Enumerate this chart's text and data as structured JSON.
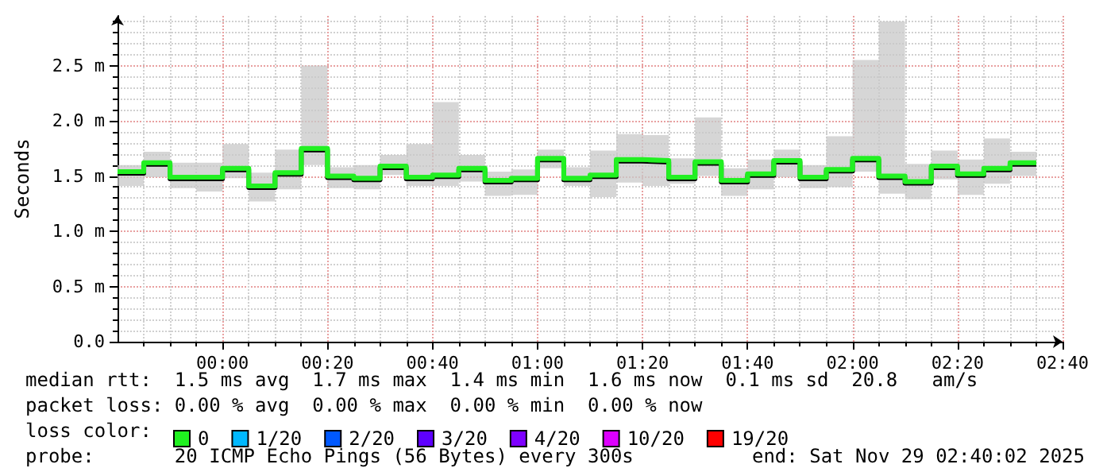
{
  "chart_data": {
    "type": "step",
    "ylabel": "Seconds",
    "x": [
      "2025-11-28T23:40",
      "2025-11-28T23:45",
      "2025-11-28T23:50",
      "2025-11-28T23:55",
      "2025-11-29T00:00",
      "2025-11-29T00:05",
      "2025-11-29T00:10",
      "2025-11-29T00:15",
      "2025-11-29T00:20",
      "2025-11-29T00:25",
      "2025-11-29T00:30",
      "2025-11-29T00:35",
      "2025-11-29T00:40",
      "2025-11-29T00:45",
      "2025-11-29T00:50",
      "2025-11-29T00:55",
      "2025-11-29T01:00",
      "2025-11-29T01:05",
      "2025-11-29T01:10",
      "2025-11-29T01:15",
      "2025-11-29T01:20",
      "2025-11-29T01:25",
      "2025-11-29T01:30",
      "2025-11-29T01:35",
      "2025-11-29T01:40",
      "2025-11-29T01:45",
      "2025-11-29T01:50",
      "2025-11-29T01:55",
      "2025-11-29T02:00",
      "2025-11-29T02:05",
      "2025-11-29T02:10",
      "2025-11-29T02:15",
      "2025-11-29T02:20",
      "2025-11-29T02:25",
      "2025-11-29T02:30",
      "2025-11-29T02:35"
    ],
    "series": [
      {
        "name": "0",
        "color": "#20f020",
        "values": [
          1.54,
          1.62,
          1.49,
          1.49,
          1.57,
          1.41,
          1.53,
          1.75,
          1.5,
          1.48,
          1.59,
          1.49,
          1.51,
          1.57,
          1.46,
          1.48,
          1.66,
          1.48,
          1.51,
          1.65,
          1.64,
          1.49,
          1.63,
          1.46,
          1.52,
          1.64,
          1.49,
          1.56,
          1.66,
          1.5,
          1.45,
          1.59,
          1.52,
          1.57,
          1.62,
          1.62
        ],
        "lower": [
          1.41,
          1.49,
          1.39,
          1.36,
          1.48,
          1.27,
          1.38,
          1.6,
          1.39,
          1.38,
          1.51,
          1.41,
          1.41,
          1.45,
          1.32,
          1.33,
          1.57,
          1.41,
          1.31,
          1.44,
          1.41,
          1.43,
          1.5,
          1.32,
          1.38,
          1.49,
          1.39,
          1.4,
          1.54,
          1.34,
          1.29,
          1.47,
          1.33,
          1.43,
          1.5,
          1.5
        ],
        "upper": [
          1.6,
          1.72,
          1.62,
          1.62,
          1.79,
          1.53,
          1.74,
          2.5,
          1.58,
          1.6,
          1.69,
          1.79,
          2.17,
          1.69,
          1.54,
          1.56,
          1.74,
          1.58,
          1.73,
          1.88,
          1.87,
          1.66,
          2.03,
          1.57,
          1.65,
          1.74,
          1.6,
          1.86,
          2.55,
          2.9,
          1.61,
          1.73,
          1.65,
          1.84,
          1.72,
          1.72
        ]
      },
      {
        "name": "1/20",
        "color": "#00b8ff",
        "values": [
          null,
          null,
          null,
          null,
          null,
          null,
          null,
          null,
          null,
          null,
          null,
          null,
          null,
          null,
          null,
          null,
          null,
          null,
          null,
          null,
          null,
          null,
          null,
          null,
          null,
          null,
          null,
          null,
          null,
          null,
          null,
          null,
          null,
          null,
          null,
          null
        ]
      },
      {
        "name": "2/20",
        "color": "#0059ff",
        "values": [
          null,
          null,
          null,
          null,
          null,
          null,
          null,
          null,
          null,
          null,
          null,
          null,
          null,
          null,
          null,
          null,
          null,
          null,
          null,
          null,
          null,
          null,
          null,
          null,
          null,
          null,
          null,
          null,
          null,
          null,
          null,
          null,
          null,
          null,
          null,
          null
        ]
      },
      {
        "name": "3/20",
        "color": "#5e00ff",
        "values": [
          null,
          null,
          null,
          null,
          null,
          null,
          null,
          null,
          null,
          null,
          null,
          null,
          null,
          null,
          null,
          null,
          null,
          null,
          null,
          null,
          null,
          null,
          null,
          null,
          null,
          null,
          null,
          null,
          null,
          null,
          null,
          null,
          null,
          null,
          null,
          null
        ]
      },
      {
        "name": "4/20",
        "color": "#7e00ff",
        "values": [
          null,
          null,
          null,
          null,
          null,
          null,
          null,
          null,
          null,
          null,
          null,
          null,
          null,
          null,
          null,
          null,
          null,
          null,
          null,
          null,
          null,
          null,
          null,
          null,
          null,
          null,
          null,
          null,
          null,
          null,
          null,
          null,
          null,
          null,
          null,
          null
        ]
      },
      {
        "name": "10/20",
        "color": "#dd00ff",
        "values": [
          null,
          null,
          null,
          null,
          null,
          null,
          null,
          null,
          null,
          null,
          null,
          null,
          null,
          null,
          null,
          null,
          null,
          null,
          null,
          null,
          null,
          null,
          null,
          null,
          null,
          null,
          null,
          null,
          null,
          null,
          null,
          null,
          null,
          null,
          null,
          null
        ]
      },
      {
        "name": "19/20",
        "color": "#ff0000",
        "values": [
          null,
          null,
          null,
          null,
          null,
          null,
          null,
          null,
          null,
          null,
          null,
          null,
          null,
          null,
          null,
          null,
          null,
          null,
          null,
          null,
          null,
          null,
          null,
          null,
          null,
          null,
          null,
          null,
          null,
          null,
          null,
          null,
          null,
          null,
          null,
          null
        ]
      }
    ],
    "xlim": [
      "2025-11-28T23:40",
      "2025-11-29T02:40"
    ],
    "xticks": [
      {
        "value": "2025-11-29T00:00",
        "label": "00:00"
      },
      {
        "value": "2025-11-29T00:20",
        "label": "00:20"
      },
      {
        "value": "2025-11-29T00:40",
        "label": "00:40"
      },
      {
        "value": "2025-11-29T01:00",
        "label": "01:00"
      },
      {
        "value": "2025-11-29T01:20",
        "label": "01:20"
      },
      {
        "value": "2025-11-29T01:40",
        "label": "01:40"
      },
      {
        "value": "2025-11-29T02:00",
        "label": "02:00"
      },
      {
        "value": "2025-11-29T02:20",
        "label": "02:20"
      },
      {
        "value": "2025-11-29T02:40",
        "label": "02:40"
      }
    ],
    "ylim": [
      0,
      2.95
    ],
    "yticks": [
      {
        "value": 0,
        "label": "0.0"
      },
      {
        "value": 0.5,
        "label": "0.5 m"
      },
      {
        "value": 1,
        "label": "1.0 m"
      },
      {
        "value": 1.5,
        "label": "1.5 m"
      },
      {
        "value": 2,
        "label": "2.0 m"
      },
      {
        "value": 2.5,
        "label": "2.5 m"
      }
    ],
    "grid": true,
    "legend": "bottom left",
    "line_style": "solid",
    "marker": "none",
    "annotations": [
      "median rtt:  1.5 ms avg  1.7 ms max  1.4 ms min  1.6 ms now  0.1 ms sd  20.8   am/s",
      "packet loss: 0.00 % avg  0.00 % max  0.00 % min  0.00 % now",
      "loss color:",
      "probe:       20 ICMP Echo Pings (56 Bytes) every 300s",
      "end: Sat Nov 29 02:40:02 2025"
    ]
  }
}
